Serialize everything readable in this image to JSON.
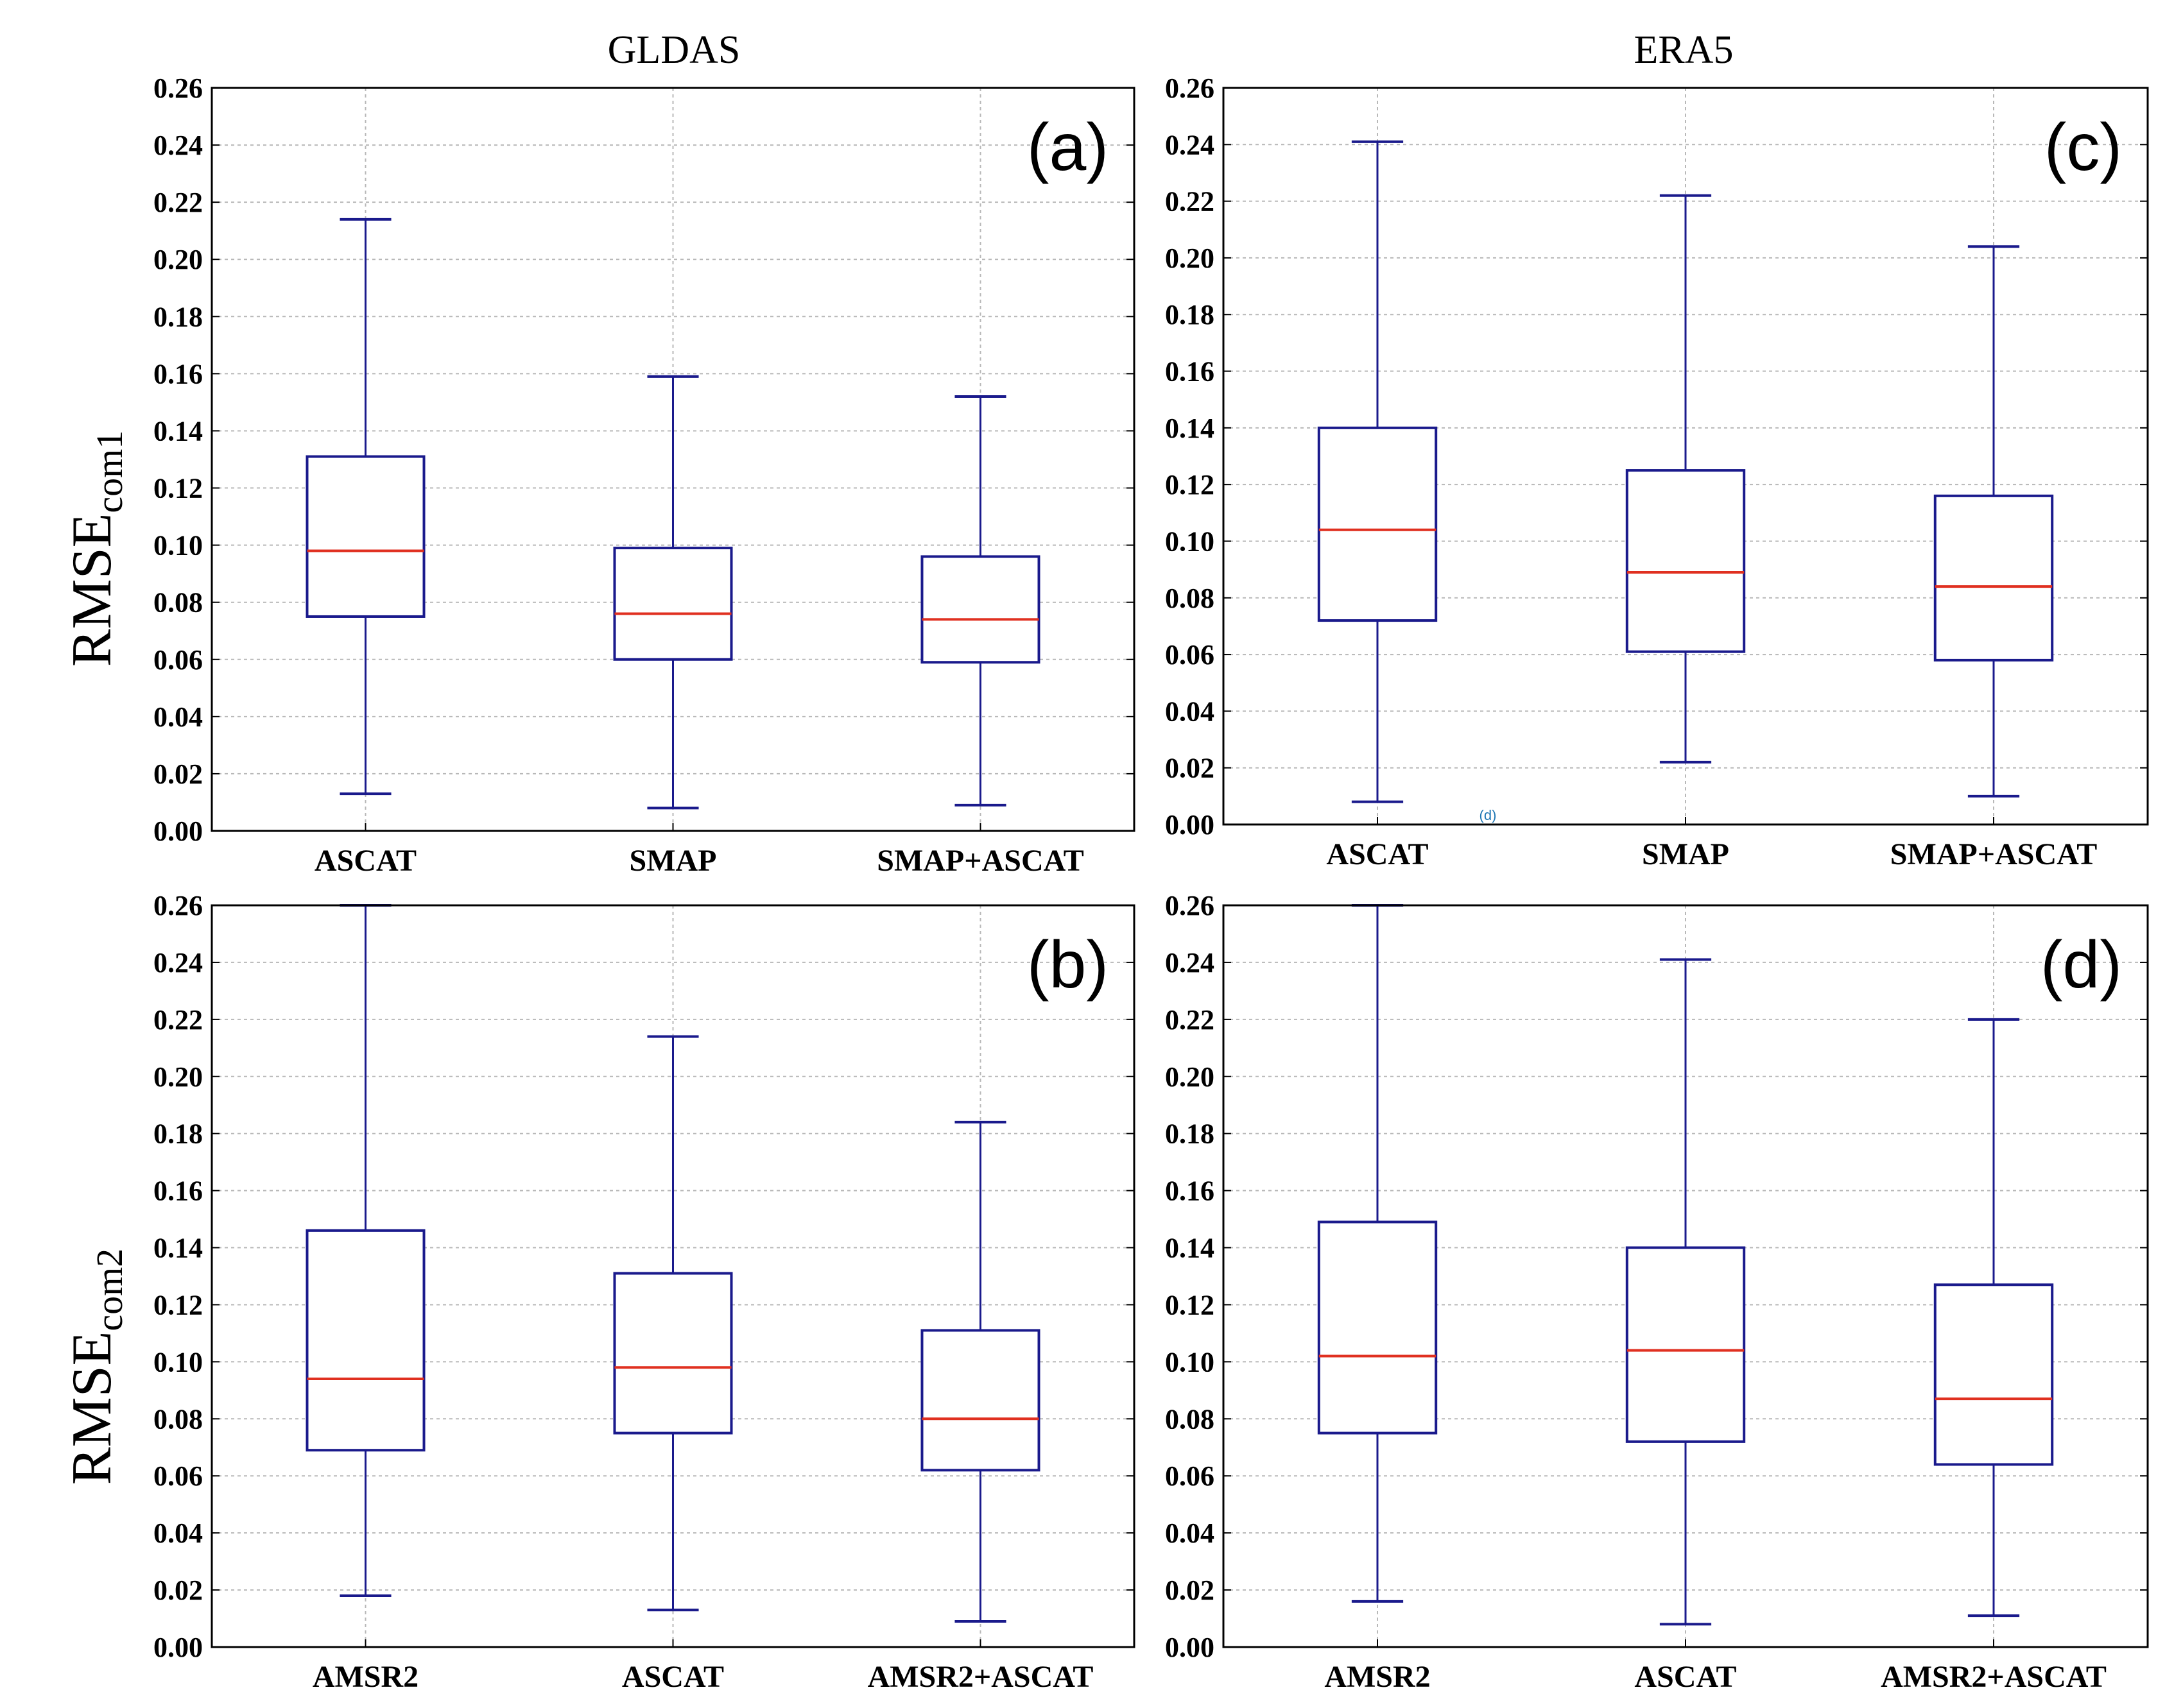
{
  "figure": {
    "column_titles": [
      "GLDAS",
      "ERA5"
    ],
    "row_labels": [
      {
        "main": "RMSE",
        "sub": "com1"
      },
      {
        "main": "RMSE",
        "sub": "com2"
      }
    ],
    "stray_text": "(d)",
    "colors": {
      "box": "#1a1a8c",
      "median": "#e03020",
      "grid": "#b8b8b8",
      "axis": "#000000",
      "stray": "#1f77b4"
    }
  },
  "chart_data": [
    {
      "id": "a",
      "type": "boxplot",
      "panel_label": "(a)",
      "title": "GLDAS",
      "ylabel": "RMSE com1",
      "ylim": [
        0,
        0.26
      ],
      "yticks": [
        "0.00",
        "0.02",
        "0.04",
        "0.06",
        "0.08",
        "0.10",
        "0.12",
        "0.14",
        "0.16",
        "0.18",
        "0.20",
        "0.22",
        "0.24",
        "0.26"
      ],
      "grid": true,
      "categories": [
        "ASCAT",
        "SMAP",
        "SMAP+ASCAT"
      ],
      "boxes": [
        {
          "min": 0.013,
          "q1": 0.075,
          "median": 0.098,
          "q3": 0.131,
          "max": 0.214
        },
        {
          "min": 0.008,
          "q1": 0.06,
          "median": 0.076,
          "q3": 0.099,
          "max": 0.159
        },
        {
          "min": 0.009,
          "q1": 0.059,
          "median": 0.074,
          "q3": 0.096,
          "max": 0.152
        }
      ]
    },
    {
      "id": "c",
      "type": "boxplot",
      "panel_label": "(c)",
      "title": "ERA5",
      "ylabel": "",
      "ylim": [
        0,
        0.26
      ],
      "yticks": [
        "0.00",
        "0.02",
        "0.04",
        "0.06",
        "0.08",
        "0.10",
        "0.12",
        "0.14",
        "0.16",
        "0.18",
        "0.20",
        "0.22",
        "0.24",
        "0.26"
      ],
      "grid": true,
      "categories": [
        "ASCAT",
        "SMAP",
        "SMAP+ASCAT"
      ],
      "boxes": [
        {
          "min": 0.008,
          "q1": 0.072,
          "median": 0.104,
          "q3": 0.14,
          "max": 0.241
        },
        {
          "min": 0.022,
          "q1": 0.061,
          "median": 0.089,
          "q3": 0.125,
          "max": 0.222
        },
        {
          "min": 0.01,
          "q1": 0.058,
          "median": 0.084,
          "q3": 0.116,
          "max": 0.204
        }
      ]
    },
    {
      "id": "b",
      "type": "boxplot",
      "panel_label": "(b)",
      "title": "",
      "ylabel": "RMSE com2",
      "ylim": [
        0,
        0.26
      ],
      "yticks": [
        "0.00",
        "0.02",
        "0.04",
        "0.06",
        "0.08",
        "0.10",
        "0.12",
        "0.14",
        "0.16",
        "0.18",
        "0.20",
        "0.22",
        "0.24",
        "0.26"
      ],
      "grid": true,
      "categories": [
        "AMSR2",
        "ASCAT",
        "AMSR2+ASCAT"
      ],
      "boxes": [
        {
          "min": 0.018,
          "q1": 0.069,
          "median": 0.094,
          "q3": 0.146,
          "max": 0.26
        },
        {
          "min": 0.013,
          "q1": 0.075,
          "median": 0.098,
          "q3": 0.131,
          "max": 0.214
        },
        {
          "min": 0.009,
          "q1": 0.062,
          "median": 0.08,
          "q3": 0.111,
          "max": 0.184
        }
      ]
    },
    {
      "id": "d",
      "type": "boxplot",
      "panel_label": "(d)",
      "title": "",
      "ylabel": "",
      "ylim": [
        0,
        0.26
      ],
      "yticks": [
        "0.00",
        "0.02",
        "0.04",
        "0.06",
        "0.08",
        "0.10",
        "0.12",
        "0.14",
        "0.16",
        "0.18",
        "0.20",
        "0.22",
        "0.24",
        "0.26"
      ],
      "grid": true,
      "categories": [
        "AMSR2",
        "ASCAT",
        "AMSR2+ASCAT"
      ],
      "boxes": [
        {
          "min": 0.016,
          "q1": 0.075,
          "median": 0.102,
          "q3": 0.149,
          "max": 0.26
        },
        {
          "min": 0.008,
          "q1": 0.072,
          "median": 0.104,
          "q3": 0.14,
          "max": 0.241
        },
        {
          "min": 0.011,
          "q1": 0.064,
          "median": 0.087,
          "q3": 0.127,
          "max": 0.22
        }
      ]
    }
  ]
}
